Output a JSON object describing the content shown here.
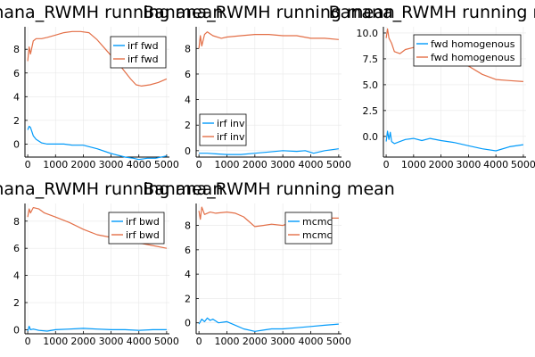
{
  "colors": {
    "series1": "#009AFA",
    "series2": "#E36F47",
    "grid": "#E8E8E8",
    "axis": "#000000"
  },
  "chart_data": [
    {
      "type": "line",
      "title": "Banana_RWMH running mean",
      "xlabel": "",
      "ylabel": "",
      "xlim": [
        -100,
        5100
      ],
      "ylim": [
        -1.1,
        9.9
      ],
      "xticks": [
        0,
        1000,
        2000,
        3000,
        4000,
        5000
      ],
      "xtick_labels": [
        "0",
        "1000",
        "2000",
        "3000",
        "4000",
        "5000"
      ],
      "yticks": [
        0,
        2,
        4,
        6,
        8
      ],
      "ytick_labels": [
        "0",
        "2",
        "4",
        "6",
        "8"
      ],
      "grid": true,
      "legend": "top-right",
      "series": [
        {
          "name": "irf fwd",
          "x": [
            0,
            50,
            100,
            200,
            300,
            500,
            700,
            1000,
            1300,
            1600,
            2000,
            2500,
            3000,
            3500,
            3800,
            4000,
            4300,
            4600,
            5000
          ],
          "y": [
            1.2,
            1.5,
            1.4,
            0.7,
            0.4,
            0.1,
            0.0,
            0.0,
            0.0,
            -0.1,
            -0.1,
            -0.4,
            -0.8,
            -1.1,
            -1.2,
            -1.3,
            -1.2,
            -1.2,
            -1.0
          ]
        },
        {
          "name": "irf fwd",
          "x": [
            0,
            50,
            100,
            200,
            300,
            500,
            700,
            1000,
            1300,
            1600,
            1900,
            2200,
            2500,
            2800,
            3100,
            3400,
            3700,
            3900,
            4100,
            4400,
            4700,
            5000
          ],
          "y": [
            7.0,
            8.2,
            7.6,
            8.7,
            8.9,
            8.9,
            9.0,
            9.2,
            9.4,
            9.5,
            9.5,
            9.4,
            8.8,
            8.0,
            7.2,
            6.4,
            5.5,
            5.0,
            4.9,
            5.0,
            5.2,
            5.5
          ]
        }
      ]
    },
    {
      "type": "line",
      "title": "Banana_RWMH running mean",
      "xlabel": "",
      "ylabel": "",
      "xlim": [
        -100,
        5100
      ],
      "ylim": [
        -0.5,
        9.7
      ],
      "xticks": [
        0,
        1000,
        2000,
        3000,
        4000,
        5000
      ],
      "xtick_labels": [
        "0",
        "1000",
        "2000",
        "3000",
        "4000",
        "5000"
      ],
      "yticks": [
        0,
        2,
        4,
        6,
        8
      ],
      "ytick_labels": [
        "0",
        "2",
        "4",
        "6",
        "8"
      ],
      "grid": true,
      "legend": "bottom-left",
      "series": [
        {
          "name": "irf inv",
          "x": [
            0,
            100,
            300,
            600,
            1000,
            1500,
            2000,
            2500,
            3000,
            3500,
            3800,
            4100,
            4500,
            5000
          ],
          "y": [
            -0.2,
            -0.2,
            -0.2,
            -0.25,
            -0.3,
            -0.3,
            -0.2,
            -0.1,
            0.0,
            -0.05,
            0.0,
            -0.2,
            0.0,
            0.15
          ]
        },
        {
          "name": "irf inv",
          "x": [
            0,
            50,
            100,
            200,
            300,
            500,
            800,
            1000,
            1500,
            2000,
            2500,
            3000,
            3500,
            4000,
            4500,
            5000
          ],
          "y": [
            8.0,
            9.0,
            8.2,
            9.1,
            9.3,
            9.0,
            8.8,
            8.9,
            9.0,
            9.1,
            9.1,
            9.0,
            9.0,
            8.8,
            8.8,
            8.7
          ]
        }
      ]
    },
    {
      "type": "line",
      "title": "Banana_RWMH running mean",
      "xlabel": "",
      "ylabel": "",
      "xlim": [
        -100,
        5100
      ],
      "ylim": [
        -2.0,
        10.6
      ],
      "xticks": [
        0,
        1000,
        2000,
        3000,
        4000,
        5000
      ],
      "xtick_labels": [
        "0",
        "1000",
        "2000",
        "3000",
        "4000",
        "5000"
      ],
      "yticks": [
        0.0,
        2.5,
        5.0,
        7.5,
        10.0
      ],
      "ytick_labels": [
        "0.0",
        "2.5",
        "5.0",
        "7.5",
        "10.0"
      ],
      "grid": true,
      "legend": "top-right",
      "series": [
        {
          "name": "fwd homogenous",
          "x": [
            0,
            50,
            100,
            150,
            200,
            300,
            500,
            700,
            1000,
            1300,
            1600,
            2000,
            2500,
            3000,
            3500,
            4000,
            4500,
            5000
          ],
          "y": [
            -0.5,
            0.5,
            -0.3,
            0.4,
            -0.5,
            -0.7,
            -0.5,
            -0.3,
            -0.2,
            -0.4,
            -0.2,
            -0.4,
            -0.6,
            -0.9,
            -1.2,
            -1.4,
            -1.0,
            -0.8
          ]
        },
        {
          "name": "fwd homogenous",
          "x": [
            0,
            50,
            100,
            200,
            300,
            500,
            700,
            1000,
            1300,
            1600,
            2000,
            2500,
            3000,
            3500,
            4000,
            4500,
            5000
          ],
          "y": [
            9.5,
            10.4,
            9.5,
            9.0,
            8.2,
            8.0,
            8.4,
            8.6,
            8.5,
            8.4,
            8.2,
            7.3,
            6.8,
            6.0,
            5.5,
            5.4,
            5.3
          ]
        }
      ]
    },
    {
      "type": "line",
      "title": "Banana_RWMH running mean",
      "xlabel": "",
      "ylabel": "",
      "xlim": [
        -100,
        5100
      ],
      "ylim": [
        -0.3,
        9.3
      ],
      "xticks": [
        0,
        1000,
        2000,
        3000,
        4000,
        5000
      ],
      "xtick_labels": [
        "0",
        "1000",
        "2000",
        "3000",
        "4000",
        "5000"
      ],
      "yticks": [
        0,
        2,
        4,
        6,
        8
      ],
      "ytick_labels": [
        "0",
        "2",
        "4",
        "6",
        "8"
      ],
      "grid": true,
      "legend": "top-right",
      "series": [
        {
          "name": "irf bwd",
          "x": [
            0,
            50,
            100,
            200,
            400,
            700,
            1000,
            1500,
            2000,
            2500,
            3000,
            3500,
            4000,
            4500,
            5000
          ],
          "y": [
            -0.1,
            0.25,
            0.0,
            0.05,
            -0.05,
            -0.1,
            0.0,
            0.05,
            0.1,
            0.05,
            0.0,
            0.0,
            -0.05,
            0.0,
            0.0
          ]
        },
        {
          "name": "irf bwd",
          "x": [
            0,
            50,
            100,
            200,
            400,
            600,
            1000,
            1500,
            2000,
            2500,
            3000,
            3500,
            4000,
            4500,
            5000
          ],
          "y": [
            8.3,
            8.9,
            8.6,
            9.0,
            8.9,
            8.6,
            8.3,
            7.9,
            7.4,
            7.0,
            6.8,
            6.6,
            6.4,
            6.2,
            6.0
          ]
        }
      ]
    },
    {
      "type": "line",
      "title": "Banana_RWMH running mean",
      "xlabel": "",
      "ylabel": "",
      "xlim": [
        -100,
        5100
      ],
      "ylim": [
        -0.9,
        9.8
      ],
      "xticks": [
        0,
        1000,
        2000,
        3000,
        4000,
        5000
      ],
      "xtick_labels": [
        "0",
        "1000",
        "2000",
        "3000",
        "4000",
        "5000"
      ],
      "yticks": [
        0,
        2,
        4,
        6,
        8
      ],
      "ytick_labels": [
        "0",
        "2",
        "4",
        "6",
        "8"
      ],
      "grid": true,
      "legend": "top-right",
      "series": [
        {
          "name": "mcmc",
          "x": [
            0,
            100,
            200,
            300,
            400,
            500,
            700,
            1000,
            1300,
            1600,
            2000,
            2300,
            2600,
            3000,
            3500,
            4000,
            4500,
            5000
          ],
          "y": [
            -0.1,
            0.3,
            0.1,
            0.4,
            0.2,
            0.3,
            0.0,
            0.1,
            -0.2,
            -0.5,
            -0.7,
            -0.6,
            -0.5,
            -0.5,
            -0.4,
            -0.3,
            -0.2,
            -0.1
          ]
        },
        {
          "name": "mcmc",
          "x": [
            0,
            50,
            100,
            200,
            400,
            600,
            1000,
            1300,
            1600,
            1800,
            2000,
            2300,
            2600,
            3000,
            3500,
            3900,
            4200,
            4500,
            5000
          ],
          "y": [
            9.2,
            8.5,
            9.5,
            8.9,
            9.1,
            9.0,
            9.1,
            9.0,
            8.7,
            8.3,
            7.9,
            8.0,
            8.1,
            8.0,
            8.4,
            8.6,
            8.5,
            8.6,
            8.6
          ]
        }
      ]
    }
  ]
}
